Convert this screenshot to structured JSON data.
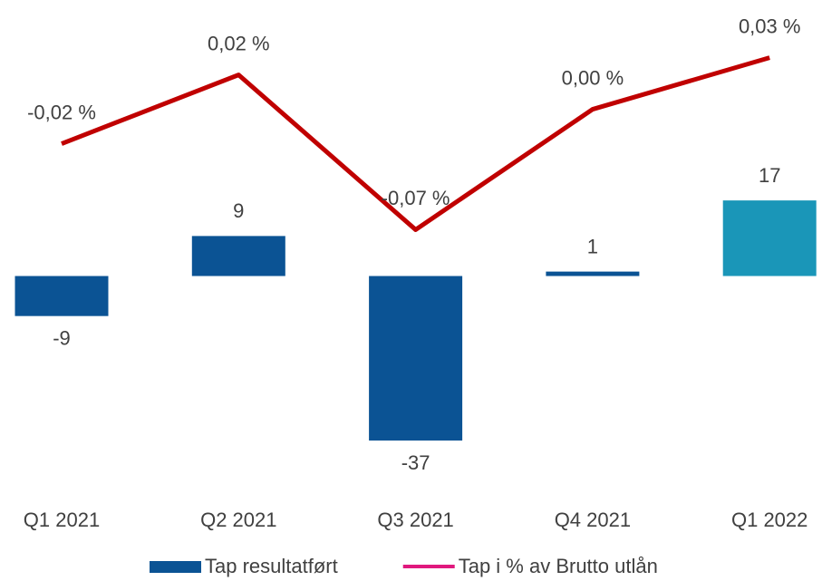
{
  "chart_data": {
    "type": "bar+line",
    "categories": [
      "Q1 2021",
      "Q2 2021",
      "Q3 2021",
      "Q4 2021",
      "Q1 2022"
    ],
    "series": [
      {
        "name": "Tap resultatført",
        "type": "bar",
        "color": "#0b5394",
        "colors": [
          "#0b5394",
          "#0b5394",
          "#0b5394",
          "#0b5394",
          "#1a96b8"
        ],
        "values": [
          -9,
          9,
          -37,
          1,
          17
        ]
      },
      {
        "name": "Tap i % av Brutto utlån",
        "type": "line",
        "axis": "y2",
        "color": "#c00000",
        "legend_color": "#e0197d",
        "values": [
          -0.02,
          0.02,
          -0.07,
          0.0,
          0.03
        ],
        "value_labels": [
          "-0,02 %",
          "0,02 %",
          "-0,07 %",
          "0,00 %",
          "0,03 %"
        ]
      }
    ],
    "ylim": [
      -48,
      58
    ],
    "y2lim": [
      -0.221,
      0.053
    ],
    "legend": "bottom"
  }
}
